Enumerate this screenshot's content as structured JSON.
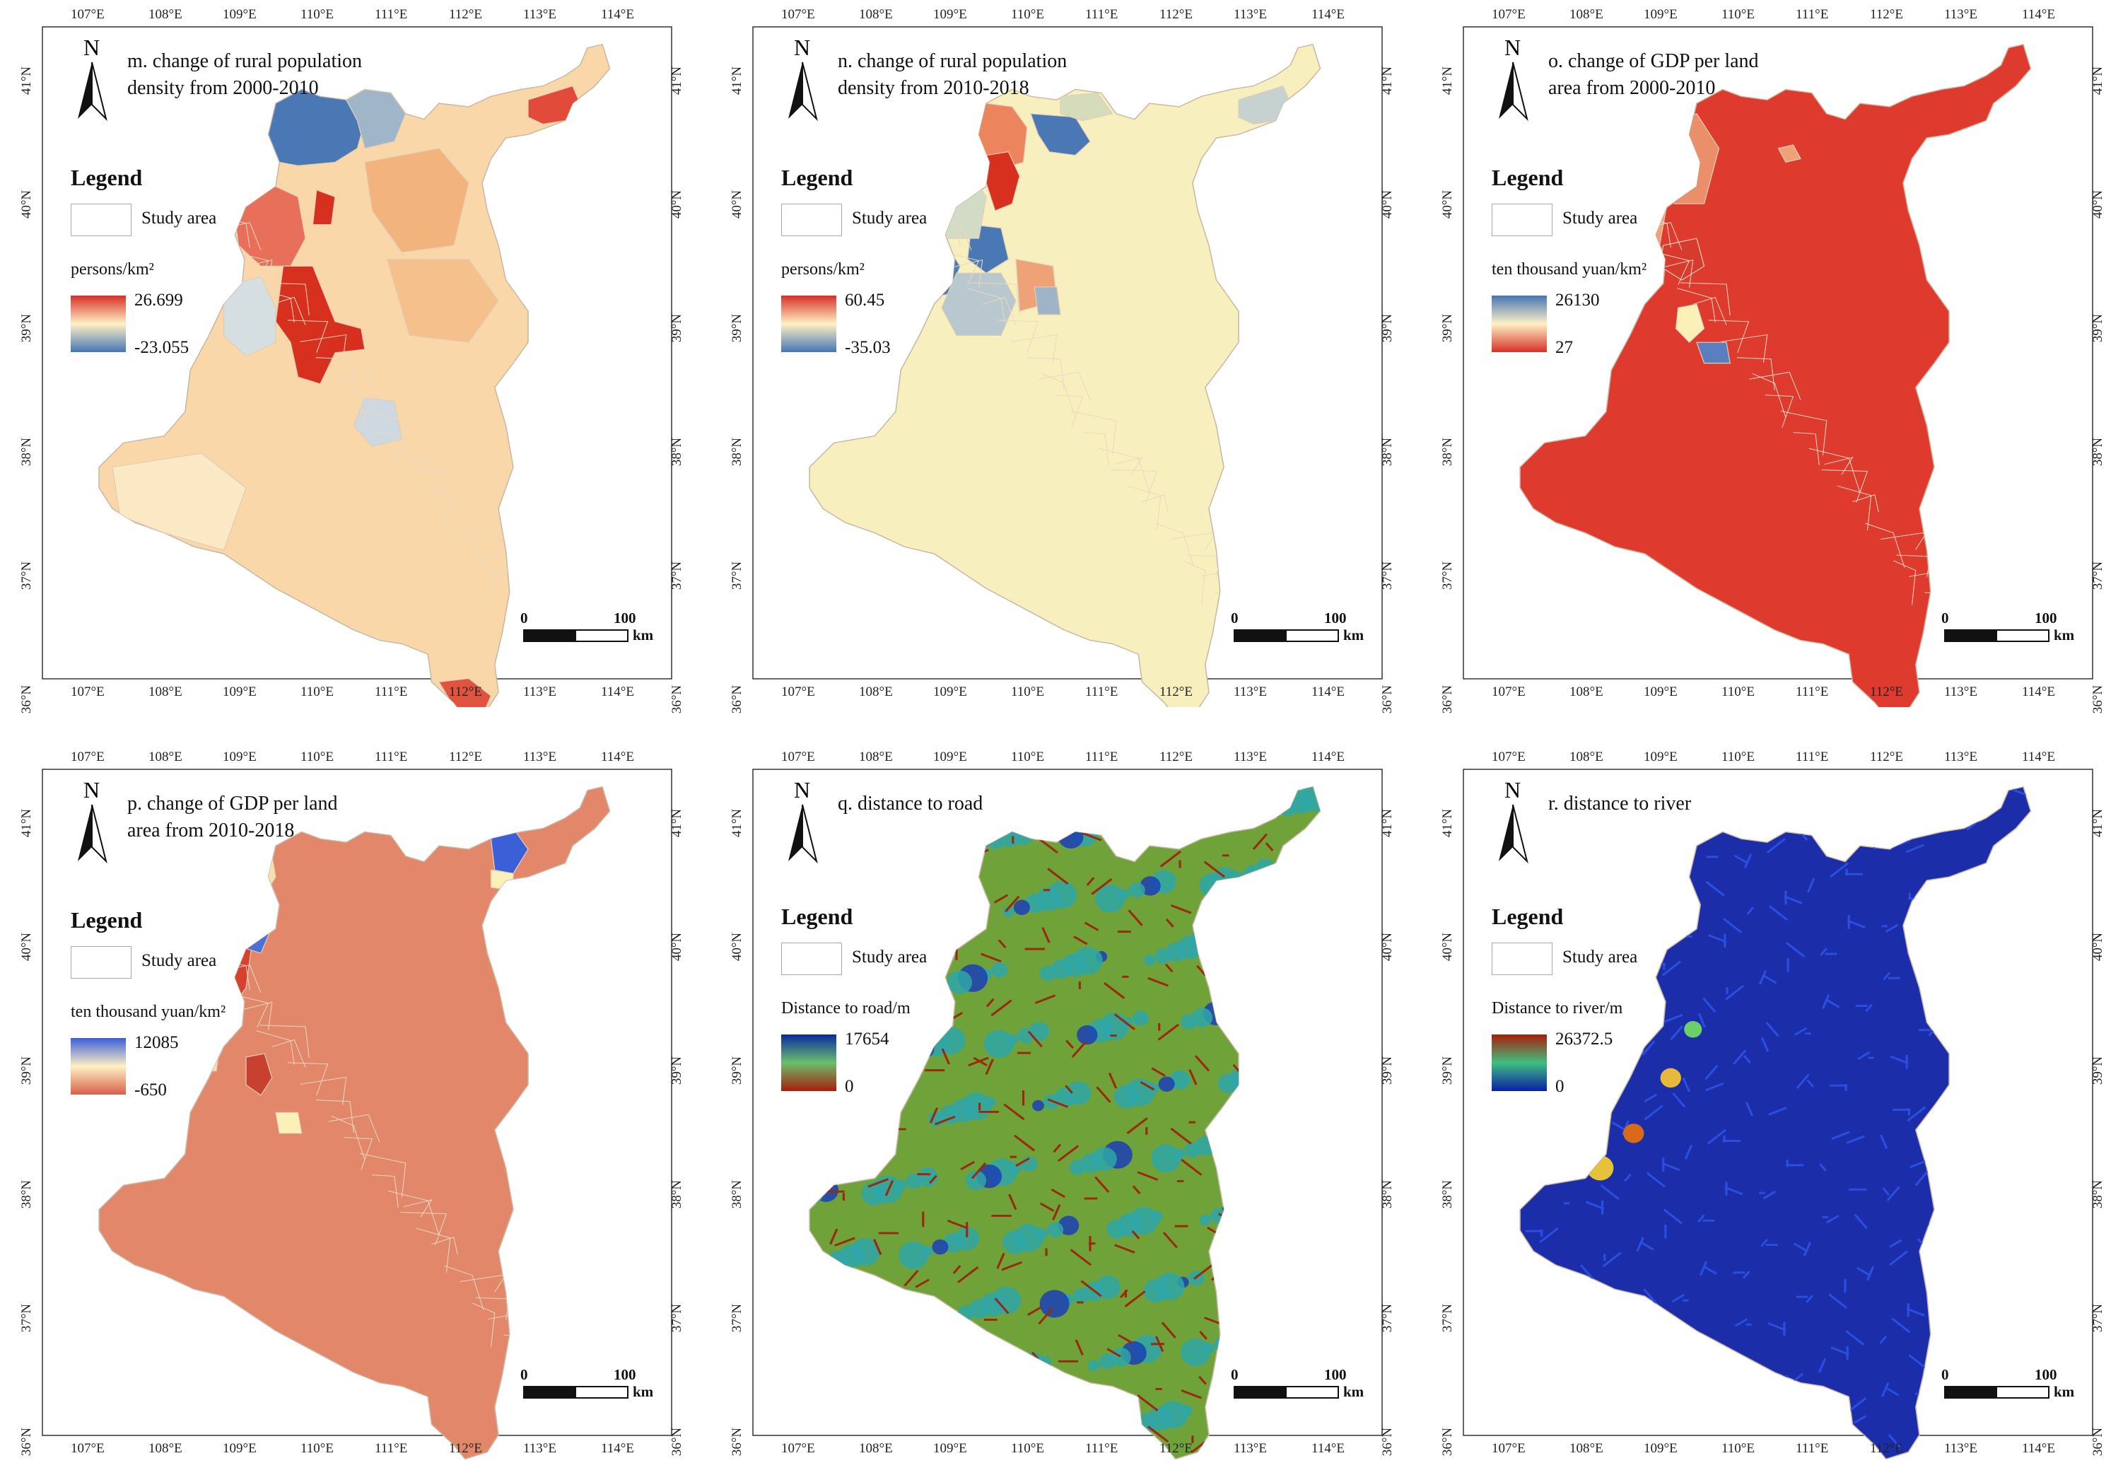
{
  "figure": {
    "lon_ticks": [
      "107°E",
      "108°E",
      "109°E",
      "110°E",
      "111°E",
      "112°E",
      "113°E",
      "114°E"
    ],
    "lat_ticks": [
      "41°N",
      "40°N",
      "39°N",
      "38°N",
      "37°N",
      "36°N"
    ],
    "north_label": "N",
    "legend_title": "Legend",
    "study_area_label": "Study area",
    "scale_zero": "0",
    "scale_hundred": "100",
    "scale_unit": "km"
  },
  "panels": [
    {
      "id": "m",
      "title": "m. change of rural population\ndensity from 2000-2010",
      "unit": "persons/km²",
      "legend_max": "26.699",
      "legend_min": "-23.055",
      "ramp_top": "#d73027",
      "ramp_mid": "#fff1c4",
      "ramp_bottom": "#4575b4"
    },
    {
      "id": "n",
      "title": "n. change of rural population\ndensity from 2010-2018",
      "unit": "persons/km²",
      "legend_max": "60.45",
      "legend_min": "-35.03",
      "ramp_top": "#d73027",
      "ramp_mid": "#fff1c4",
      "ramp_bottom": "#4575b4"
    },
    {
      "id": "o",
      "title": "o. change of GDP per land\narea from 2000-2010",
      "unit": "ten thousand yuan/km²",
      "legend_max": "26130",
      "legend_min": "27",
      "ramp_top": "#4575b4",
      "ramp_mid": "#fff1c4",
      "ramp_bottom": "#d73027"
    },
    {
      "id": "p",
      "title": "p. change of GDP per land\narea from 2010-2018",
      "unit": "ten thousand yuan/km²",
      "legend_max": "12085",
      "legend_min": "-650",
      "ramp_top": "#3b5fd6",
      "ramp_mid": "#fff1c4",
      "ramp_bottom": "#d9604a"
    },
    {
      "id": "q",
      "title": "q. distance to  road",
      "unit": "Distance to road/m",
      "legend_max": "17654",
      "legend_min": "0",
      "ramp_top": "#0a2a9e",
      "ramp_mid": "#6bbf6b",
      "ramp_bottom": "#a81d0a"
    },
    {
      "id": "r",
      "title": "r. distance to river",
      "unit": "Distance to river/m",
      "legend_max": "26372.5",
      "legend_min": "0",
      "ramp_top": "#a81d0a",
      "ramp_mid": "#3fbf7f",
      "ramp_bottom": "#0a1fa8"
    }
  ]
}
